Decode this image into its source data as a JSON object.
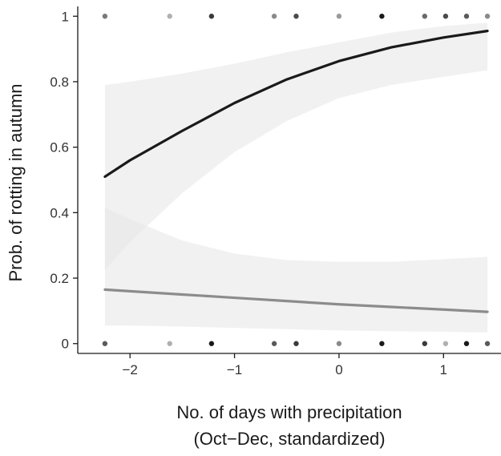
{
  "chart_data": {
    "type": "line",
    "title": "",
    "xlabel_line1": "No. of days with precipitation",
    "xlabel_line2": "(Oct−Dec, standardized)",
    "ylabel": "Prob. of rotting in autumn",
    "xlim": [
      -2.5,
      1.55
    ],
    "ylim": [
      -0.03,
      1.03
    ],
    "xticks": [
      -2,
      -1,
      0,
      1
    ],
    "xtick_labels": [
      "−2",
      "−1",
      "0",
      "1"
    ],
    "yticks": [
      0,
      0.2,
      0.4,
      0.6,
      0.8,
      1
    ],
    "ytick_labels": [
      "0",
      "0.2",
      "0.4",
      "0.6",
      "0.8",
      "1"
    ],
    "grid": false,
    "legend": "none",
    "colors": {
      "dark_line": "#1a1a1a",
      "gray_line": "#8c8c8c",
      "band": "#e6e6e6",
      "axis": "#1a1a1a"
    },
    "series": [
      {
        "color": "#1a1a1a",
        "x": [
          -2.24,
          -2.0,
          -1.5,
          -1.0,
          -0.5,
          0.0,
          0.5,
          1.0,
          1.42
        ],
        "y": [
          0.51,
          0.56,
          0.65,
          0.735,
          0.807,
          0.863,
          0.905,
          0.935,
          0.955
        ],
        "lower": [
          0.225,
          0.31,
          0.46,
          0.585,
          0.68,
          0.75,
          0.79,
          0.815,
          0.835
        ],
        "upper": [
          0.79,
          0.8,
          0.825,
          0.855,
          0.89,
          0.92,
          0.95,
          0.97,
          0.98
        ]
      },
      {
        "color": "#8c8c8c",
        "x": [
          -2.24,
          -2.0,
          -1.5,
          -1.0,
          -0.5,
          0.0,
          0.5,
          1.0,
          1.42
        ],
        "y": [
          0.165,
          0.16,
          0.15,
          0.14,
          0.13,
          0.12,
          0.112,
          0.104,
          0.097
        ],
        "lower": [
          0.055,
          0.055,
          0.052,
          0.048,
          0.044,
          0.04,
          0.038,
          0.036,
          0.034
        ],
        "upper": [
          0.415,
          0.38,
          0.315,
          0.275,
          0.255,
          0.25,
          0.25,
          0.258,
          0.265
        ]
      }
    ],
    "observations": [
      {
        "x": -2.24,
        "y": 1,
        "shade": "#7a7a7a"
      },
      {
        "x": -1.62,
        "y": 1,
        "shade": "#b0b0b0"
      },
      {
        "x": -1.22,
        "y": 1,
        "shade": "#3a3a3a"
      },
      {
        "x": -0.62,
        "y": 1,
        "shade": "#8a8a8a"
      },
      {
        "x": -0.41,
        "y": 1,
        "shade": "#4a4a4a"
      },
      {
        "x": 0.0,
        "y": 1,
        "shade": "#9a9a9a"
      },
      {
        "x": 0.41,
        "y": 1,
        "shade": "#1a1a1a"
      },
      {
        "x": 0.82,
        "y": 1,
        "shade": "#6a6a6a"
      },
      {
        "x": 1.02,
        "y": 1,
        "shade": "#4a4a4a"
      },
      {
        "x": 1.22,
        "y": 1,
        "shade": "#5a5a5a"
      },
      {
        "x": 1.42,
        "y": 1,
        "shade": "#8a8a8a"
      },
      {
        "x": -2.24,
        "y": 0,
        "shade": "#5a5a5a"
      },
      {
        "x": -1.62,
        "y": 0,
        "shade": "#b0b0b0"
      },
      {
        "x": -1.22,
        "y": 0,
        "shade": "#1a1a1a"
      },
      {
        "x": -0.62,
        "y": 0,
        "shade": "#5a5a5a"
      },
      {
        "x": -0.41,
        "y": 0,
        "shade": "#3a3a3a"
      },
      {
        "x": 0.0,
        "y": 0,
        "shade": "#8a8a8a"
      },
      {
        "x": 0.41,
        "y": 0,
        "shade": "#1a1a1a"
      },
      {
        "x": 0.82,
        "y": 0,
        "shade": "#3a3a3a"
      },
      {
        "x": 1.02,
        "y": 0,
        "shade": "#b0b0b0"
      },
      {
        "x": 1.22,
        "y": 0,
        "shade": "#1a1a1a"
      },
      {
        "x": 1.42,
        "y": 0,
        "shade": "#5a5a5a"
      }
    ]
  }
}
